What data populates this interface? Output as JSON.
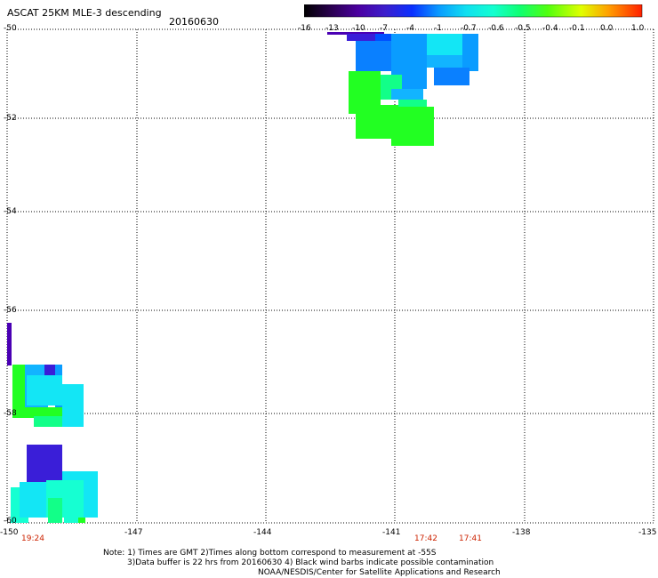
{
  "header": {
    "title": "ASCAT 25KM MLE-3 descending",
    "date": "20160630"
  },
  "colorbar": {
    "labels": [
      "-16",
      "-13",
      "-10",
      "-7",
      "-4",
      "-1",
      "-0.7",
      "-0.6",
      "-0.5",
      "-0.4",
      "-0.1",
      "0.0",
      "1.0"
    ],
    "colors": [
      "#000000",
      "#2a0050",
      "#4b00a0",
      "#3c1ecc",
      "#0a30ff",
      "#0a9cff",
      "#10e0f0",
      "#13ffd0",
      "#10ff70",
      "#50ff10",
      "#d0ff00",
      "#ffa000",
      "#ff3000"
    ]
  },
  "axes": {
    "x_ticks": [
      "-150",
      "-147",
      "-144",
      "-141",
      "-138",
      "-135"
    ],
    "y_ticks": [
      "-50",
      "-52",
      "-54",
      "-56",
      "-58",
      "-60"
    ],
    "x_range": [
      -150,
      -135
    ],
    "y_range": [
      -60,
      -50
    ],
    "grid": "dotted"
  },
  "times": [
    "19:24",
    "17:42",
    "17:41"
  ],
  "notes": {
    "line1": "Note: 1) Times are GMT 2)Times along bottom correspond to measurement at -55S",
    "line2": "3)Data buffer is 22 hrs from 20160630 4) Black wind barbs indicate possible contamination",
    "line3": "NOAA/NESDIS/Center for Satellite Applications and Research"
  },
  "colors": {
    "violet": "#4a00b4",
    "indigo": "#3a1ed8",
    "blue": "#0050ff",
    "sky": "#0a9cff",
    "azure": "#12b4ff",
    "cyan": "#13e6f5",
    "aqua": "#16ffd2",
    "spring": "#12ff88",
    "green": "#22ff22"
  }
}
